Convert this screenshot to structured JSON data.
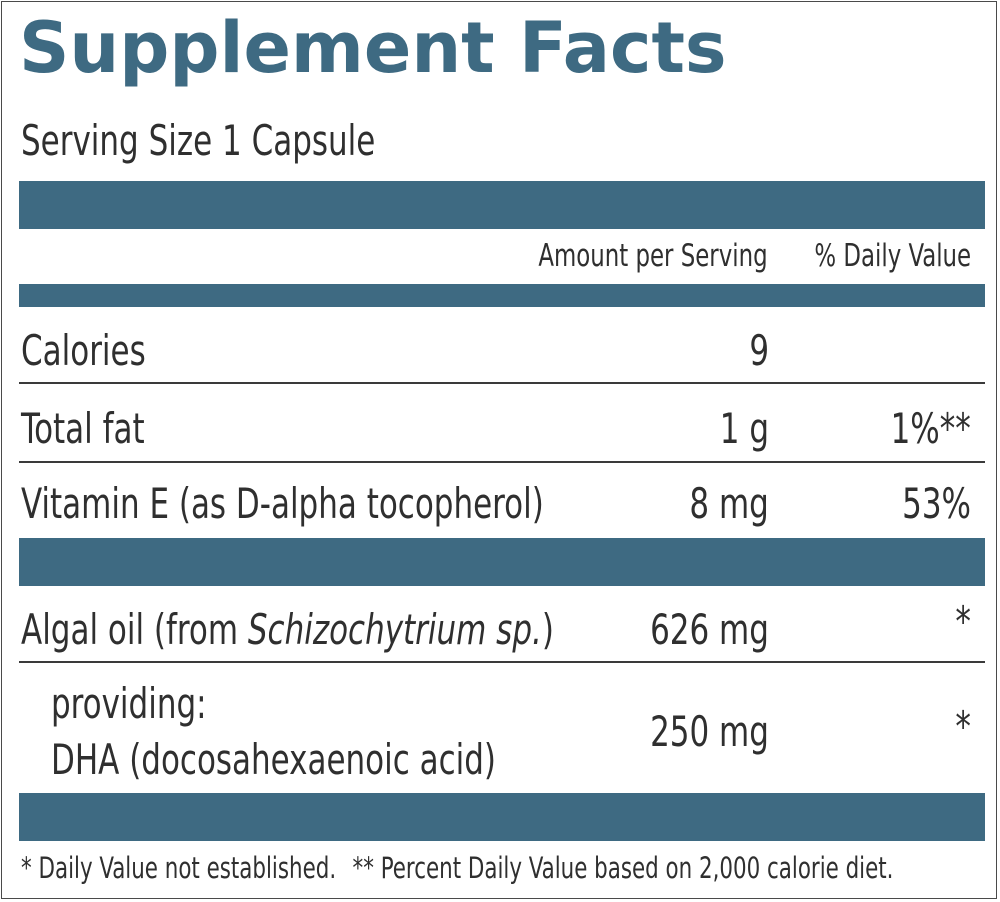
{
  "title": "Supplement Facts",
  "serving_size": "Serving Size 1 Capsule",
  "header": {
    "amount": "Amount per Serving",
    "daily_value": "% Daily Value"
  },
  "rows": [
    {
      "name": "Calories",
      "amount": "9",
      "dv": ""
    },
    {
      "name": "Total fat",
      "amount": "1 g",
      "dv": "1%**"
    },
    {
      "name": "Vitamin E (as D-alpha tocopherol)",
      "amount": "8 mg",
      "dv": "53%"
    }
  ],
  "algal": {
    "name_prefix": "Algal oil (from ",
    "name_italic": "Schizochytrium sp.",
    "name_suffix": ")",
    "amount": "626 mg",
    "dv": "*"
  },
  "dha": {
    "line1": "providing:",
    "line2": "DHA (docosahexaenoic acid)",
    "amount": "250 mg",
    "dv": "*"
  },
  "footnotes": {
    "single": "*  Daily Value not established.",
    "double": "** Percent Daily Value based on 2,000 calorie diet."
  },
  "colors": {
    "accent": "#3e6a82",
    "text": "#2f2f2f",
    "rule": "#3a3a3a"
  }
}
